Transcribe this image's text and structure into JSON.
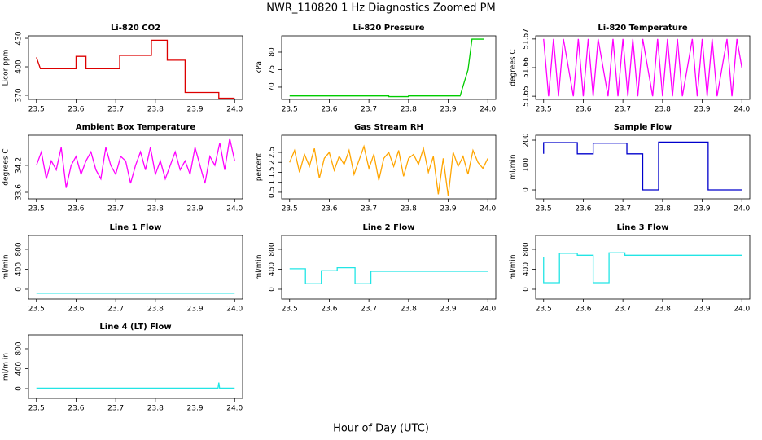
{
  "title": "NWR_110820  1 Hz Diagnostics Zoomed PM",
  "x_label": "Hour of Day (UTC)",
  "chart_data": [
    {
      "type": "line",
      "title": "Li-820 CO2",
      "ylabel": "Licor ppm",
      "color": "#dd0000",
      "x": [
        23.5,
        23.51,
        23.6,
        23.6,
        23.625,
        23.625,
        23.71,
        23.71,
        23.79,
        23.79,
        23.83,
        23.83,
        23.875,
        23.875,
        23.96,
        23.96,
        24.0
      ],
      "values": [
        410,
        398,
        398,
        411,
        411,
        398,
        398,
        412,
        412,
        428,
        428,
        407,
        407,
        373,
        373,
        367,
        367
      ],
      "xlim": [
        23.48,
        24.02
      ],
      "xticks": [
        23.5,
        23.6,
        23.7,
        23.8,
        23.9,
        {
          "value": 24,
          "label": "24.0"
        }
      ],
      "ylim": [
        365.7,
        432.6
      ],
      "yticks": [
        370,
        400,
        430
      ]
    },
    {
      "type": "line",
      "title": "Li-820 Pressure",
      "ylabel": "kPa",
      "color": "#00cc00",
      "x": [
        23.5,
        23.75,
        23.75,
        23.8,
        23.8,
        23.93,
        23.95,
        23.96,
        23.99
      ],
      "values": [
        67.5,
        67.5,
        67.3,
        67.3,
        67.5,
        67.5,
        75,
        83.7,
        83.7
      ],
      "xlim": [
        23.48,
        24.02
      ],
      "xticks": [
        23.5,
        23.6,
        23.7,
        23.8,
        23.9,
        {
          "value": 24,
          "label": "24.0"
        }
      ],
      "ylim": [
        66.5,
        84.65
      ],
      "yticks": [
        70,
        75,
        80
      ]
    },
    {
      "type": "line",
      "title": "Li-820 Temperature",
      "ylabel": "degrees C",
      "color": "#ff00ff",
      "x": [
        23.5,
        23.5125,
        23.525,
        23.5375,
        23.55,
        23.5625,
        23.575,
        23.5875,
        23.6,
        23.6125,
        23.625,
        23.6375,
        23.65,
        23.6625,
        23.675,
        23.6875,
        23.7,
        23.7125,
        23.725,
        23.7375,
        23.75,
        23.7625,
        23.775,
        23.7875,
        23.8,
        23.8125,
        23.825,
        23.8375,
        23.85,
        23.8625,
        23.875,
        23.8875,
        23.9,
        23.9125,
        23.925,
        23.9375,
        23.95,
        23.9625,
        23.975,
        23.9875,
        24.0
      ],
      "values": [
        51.67,
        51.65,
        51.67,
        51.65,
        51.67,
        51.66,
        51.65,
        51.67,
        51.65,
        51.67,
        51.65,
        51.67,
        51.66,
        51.65,
        51.67,
        51.65,
        51.67,
        51.65,
        51.67,
        51.65,
        51.67,
        51.66,
        51.65,
        51.67,
        51.65,
        51.67,
        51.65,
        51.67,
        51.65,
        51.66,
        51.67,
        51.65,
        51.67,
        51.65,
        51.67,
        51.65,
        51.66,
        51.67,
        51.65,
        51.67,
        51.66
      ],
      "xlim": [
        23.48,
        24.02
      ],
      "xticks": [
        23.5,
        23.6,
        23.7,
        23.8,
        23.9,
        {
          "value": 24,
          "label": "24.0"
        }
      ],
      "ylim": [
        51.6489,
        51.6711
      ],
      "yticks": [
        51.65,
        51.66,
        51.67
      ]
    },
    {
      "type": "line",
      "title": "Ambient Box Temperature",
      "ylabel": "degrees C",
      "color": "#ff00ff",
      "x": [
        23.5,
        23.5125,
        23.525,
        23.5375,
        23.55,
        23.5625,
        23.575,
        23.5875,
        23.6,
        23.6125,
        23.625,
        23.6375,
        23.65,
        23.6625,
        23.675,
        23.6875,
        23.7,
        23.7125,
        23.725,
        23.7375,
        23.75,
        23.7625,
        23.775,
        23.7875,
        23.8,
        23.8125,
        23.825,
        23.8375,
        23.85,
        23.8625,
        23.875,
        23.8875,
        23.9,
        23.9125,
        23.925,
        23.9375,
        23.95,
        23.9625,
        23.975,
        23.9875,
        24.0
      ],
      "values": [
        34.2,
        34.5,
        33.9,
        34.3,
        34.1,
        34.6,
        33.7,
        34.2,
        34.4,
        34.0,
        34.3,
        34.5,
        34.1,
        33.9,
        34.6,
        34.2,
        34.0,
        34.4,
        34.3,
        33.8,
        34.2,
        34.5,
        34.1,
        34.6,
        34.0,
        34.3,
        33.9,
        34.2,
        34.5,
        34.1,
        34.3,
        34.0,
        34.6,
        34.2,
        33.8,
        34.4,
        34.2,
        34.7,
        34.1,
        34.8,
        34.3
      ],
      "xlim": [
        23.48,
        24.02
      ],
      "xticks": [
        23.5,
        23.6,
        23.7,
        23.8,
        23.9,
        {
          "value": 24,
          "label": "24.0"
        }
      ],
      "ylim": [
        33.455,
        34.87
      ],
      "yticks": [
        33.6,
        34.2
      ]
    },
    {
      "type": "line",
      "title": "Gas Stream RH",
      "ylabel": "percent",
      "color": "#ffa500",
      "x": [
        23.5,
        23.5125,
        23.525,
        23.5375,
        23.55,
        23.5625,
        23.575,
        23.5875,
        23.6,
        23.6125,
        23.625,
        23.6375,
        23.65,
        23.6625,
        23.675,
        23.6875,
        23.7,
        23.7125,
        23.725,
        23.7375,
        23.75,
        23.7625,
        23.775,
        23.7875,
        23.8,
        23.8125,
        23.825,
        23.8375,
        23.85,
        23.8625,
        23.875,
        23.8875,
        23.9,
        23.9125,
        23.925,
        23.9375,
        23.95,
        23.9625,
        23.975,
        23.9875,
        24.0
      ],
      "values": [
        2.0,
        2.6,
        1.5,
        2.4,
        1.8,
        2.7,
        1.2,
        2.2,
        2.5,
        1.6,
        2.3,
        1.9,
        2.6,
        1.4,
        2.1,
        2.8,
        1.7,
        2.4,
        1.1,
        2.2,
        2.5,
        1.8,
        2.6,
        1.3,
        2.2,
        2.4,
        1.9,
        2.7,
        1.5,
        2.3,
        0.4,
        2.2,
        0.3,
        2.5,
        1.8,
        2.3,
        1.4,
        2.6,
        2.0,
        1.7,
        2.2
      ],
      "xlim": [
        23.48,
        24.02
      ],
      "xticks": [
        23.5,
        23.6,
        23.7,
        23.8,
        23.9,
        {
          "value": 24,
          "label": "24.0"
        }
      ],
      "ylim": [
        0.17,
        3.36
      ],
      "yticks": [
        0.5,
        1.0,
        1.5,
        2.0,
        2.5
      ]
    },
    {
      "type": "line",
      "title": "Sample Flow",
      "ylabel": "ml/min",
      "color": "#0000cc",
      "x": [
        23.5,
        23.5,
        23.585,
        23.585,
        23.625,
        23.625,
        23.71,
        23.71,
        23.75,
        23.75,
        23.79,
        23.79,
        23.915,
        23.915,
        24.0
      ],
      "values": [
        145,
        190,
        190,
        145,
        145,
        188,
        188,
        145,
        145,
        0,
        0,
        192,
        192,
        0,
        0
      ],
      "xlim": [
        23.48,
        24.02
      ],
      "xticks": [
        23.5,
        23.6,
        23.7,
        23.8,
        23.9,
        {
          "value": 24,
          "label": "24.0"
        }
      ],
      "ylim": [
        -36,
        219.7
      ],
      "yticks": [
        0,
        100,
        200
      ]
    },
    {
      "type": "line",
      "title": "Line 1 Flow",
      "ylabel": "ml/min",
      "color": "#22e5e5",
      "x": [
        23.5,
        24.0
      ],
      "values": [
        -80,
        -80
      ],
      "xlim": [
        23.48,
        24.02
      ],
      "xticks": [
        23.5,
        23.6,
        23.7,
        23.8,
        23.9,
        {
          "value": 24,
          "label": "24.0"
        }
      ],
      "ylim": [
        -196,
        1077
      ],
      "yticks": [
        0,
        400,
        800
      ]
    },
    {
      "type": "line",
      "title": "Line 2 Flow",
      "ylabel": "ml/min",
      "color": "#22e5e5",
      "x": [
        23.5,
        23.54,
        23.54,
        23.58,
        23.58,
        23.62,
        23.62,
        23.665,
        23.665,
        23.705,
        23.705,
        24.0
      ],
      "values": [
        410,
        410,
        110,
        110,
        370,
        370,
        430,
        430,
        110,
        110,
        360,
        360
      ],
      "xlim": [
        23.48,
        24.02
      ],
      "xticks": [
        23.5,
        23.6,
        23.7,
        23.8,
        23.9,
        {
          "value": 24,
          "label": "24.0"
        }
      ],
      "ylim": [
        -196,
        1077
      ],
      "yticks": [
        0,
        400,
        800
      ]
    },
    {
      "type": "line",
      "title": "Line 3 Flow",
      "ylabel": "ml/min",
      "color": "#22e5e5",
      "x": [
        23.5,
        23.5,
        23.54,
        23.54,
        23.585,
        23.585,
        23.625,
        23.625,
        23.665,
        23.665,
        23.705,
        23.705,
        24.0
      ],
      "values": [
        640,
        130,
        130,
        720,
        720,
        680,
        680,
        130,
        130,
        730,
        730,
        680,
        680
      ],
      "xlim": [
        23.48,
        24.02
      ],
      "xticks": [
        23.5,
        23.6,
        23.7,
        23.8,
        23.9,
        {
          "value": 24,
          "label": "24.0"
        }
      ],
      "ylim": [
        -196,
        1077
      ],
      "yticks": [
        0,
        400,
        800
      ]
    },
    {
      "type": "line",
      "title": "Line 4 (LT) Flow",
      "ylabel": "ml/m in",
      "color": "#22e5e5",
      "x": [
        23.5,
        23.958,
        23.96,
        23.962,
        24.0
      ],
      "values": [
        10,
        10,
        120,
        10,
        10
      ],
      "xlim": [
        23.48,
        24.02
      ],
      "xticks": [
        23.5,
        23.6,
        23.7,
        23.8,
        23.9,
        {
          "value": 24,
          "label": "24.0"
        }
      ],
      "ylim": [
        -196,
        1077
      ],
      "yticks": [
        0,
        400,
        800
      ]
    }
  ]
}
